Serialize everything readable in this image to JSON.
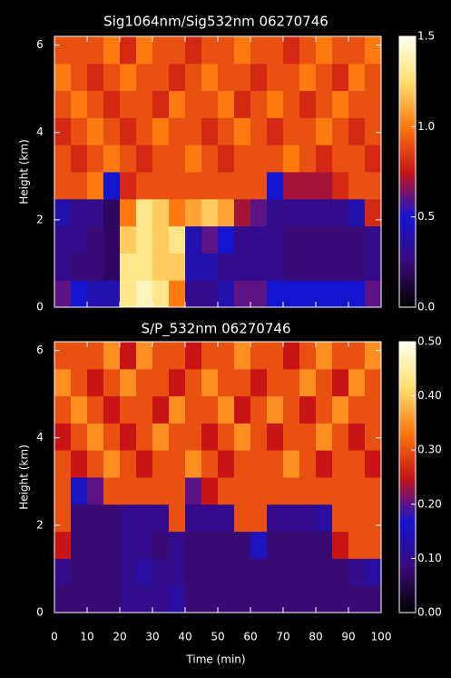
{
  "chart_data": [
    {
      "type": "heatmap",
      "title": "Sig1064nm/Sig532nm 06270746",
      "ylabel": "Height (km)",
      "xlim": [
        0,
        100
      ],
      "ylim": [
        0,
        6.2
      ],
      "yticks": [
        0,
        2,
        4,
        6
      ],
      "xbins": [
        0,
        5,
        10,
        15,
        20,
        25,
        30,
        35,
        40,
        45,
        50,
        55,
        60,
        65,
        70,
        75,
        80,
        85,
        90,
        95,
        100
      ],
      "ybins": [
        0,
        0.62,
        1.24,
        1.86,
        2.48,
        3.1,
        3.72,
        4.34,
        4.96,
        5.58,
        6.2
      ],
      "zlim": [
        0,
        1.5
      ],
      "zticks": [
        {
          "value": 0,
          "label": "0.0"
        },
        {
          "value": 0.5,
          "label": "0.5"
        },
        {
          "value": 1,
          "label": "1.0"
        },
        {
          "value": 1.5,
          "label": "1.5"
        }
      ],
      "colorscale": [
        "#000000",
        "#3a0a78",
        "#1414d0",
        "#c81414",
        "#ff7a10",
        "#ffe070",
        "#fffff0"
      ],
      "z": [
        [
          0.6,
          0.5,
          0.4,
          0.4,
          1.3,
          1.4,
          1.3,
          1.0,
          0.3,
          0.3,
          0.4,
          0.6,
          0.6,
          0.5,
          0.5,
          0.5,
          0.5,
          0.5,
          0.5,
          0.6
        ],
        [
          0.3,
          0.25,
          0.25,
          0.2,
          1.3,
          1.3,
          1.2,
          1.2,
          0.4,
          0.4,
          0.3,
          0.3,
          0.3,
          0.3,
          0.25,
          0.25,
          0.25,
          0.25,
          0.25,
          0.3
        ],
        [
          0.3,
          0.3,
          0.25,
          0.2,
          1.2,
          1.3,
          1.2,
          1.3,
          0.4,
          0.6,
          0.5,
          0.3,
          0.3,
          0.3,
          0.25,
          0.25,
          0.25,
          0.25,
          0.25,
          0.3
        ],
        [
          0.4,
          0.3,
          0.3,
          0.2,
          1.0,
          1.3,
          1.2,
          1.0,
          1.1,
          1.2,
          1.1,
          0.7,
          0.6,
          0.3,
          0.3,
          0.3,
          0.3,
          0.3,
          0.4,
          0.8
        ],
        [
          0.9,
          0.9,
          1.0,
          0.5,
          0.8,
          0.9,
          0.9,
          0.9,
          0.9,
          0.9,
          0.9,
          0.9,
          0.9,
          0.5,
          0.7,
          0.7,
          0.7,
          0.8,
          0.9,
          0.9
        ],
        [
          0.9,
          0.8,
          0.9,
          1.0,
          0.9,
          0.8,
          0.9,
          0.9,
          1.0,
          0.9,
          0.8,
          0.9,
          0.9,
          0.9,
          1.0,
          0.9,
          0.8,
          0.9,
          0.9,
          0.8
        ],
        [
          0.8,
          0.9,
          1.0,
          0.9,
          0.8,
          0.9,
          1.0,
          0.9,
          0.9,
          0.8,
          0.9,
          1.0,
          0.9,
          0.8,
          0.9,
          0.9,
          1.0,
          0.9,
          0.8,
          0.9
        ],
        [
          0.9,
          1.0,
          0.9,
          0.8,
          0.9,
          0.9,
          0.8,
          1.0,
          0.9,
          0.9,
          1.0,
          0.8,
          0.9,
          1.0,
          0.9,
          0.8,
          0.9,
          1.0,
          0.9,
          0.9
        ],
        [
          1.0,
          0.9,
          0.8,
          0.9,
          1.0,
          0.9,
          0.9,
          0.8,
          0.9,
          1.0,
          0.9,
          0.9,
          0.8,
          0.9,
          0.9,
          1.0,
          0.9,
          0.8,
          1.0,
          0.9
        ],
        [
          0.9,
          0.9,
          0.9,
          1.0,
          0.8,
          1.0,
          0.9,
          0.9,
          0.8,
          0.9,
          0.9,
          1.0,
          0.9,
          0.9,
          0.8,
          0.9,
          1.0,
          0.9,
          0.9,
          1.0
        ]
      ]
    },
    {
      "type": "heatmap",
      "title": "S/P_532nm 06270746",
      "ylabel": "Height (km)",
      "xlabel": "Time (min)",
      "xlim": [
        0,
        100
      ],
      "ylim": [
        0,
        6.2
      ],
      "yticks": [
        0,
        2,
        4,
        6
      ],
      "xticks": [
        0,
        10,
        20,
        30,
        40,
        50,
        60,
        70,
        80,
        90,
        100
      ],
      "xbins": [
        0,
        5,
        10,
        15,
        20,
        25,
        30,
        35,
        40,
        45,
        50,
        55,
        60,
        65,
        70,
        75,
        80,
        85,
        90,
        95,
        100
      ],
      "ybins": [
        0,
        0.62,
        1.24,
        1.86,
        2.48,
        3.1,
        3.72,
        4.34,
        4.96,
        5.58,
        6.2
      ],
      "zlim": [
        0,
        0.5
      ],
      "zticks": [
        {
          "value": 0,
          "label": "0.00"
        },
        {
          "value": 0.1,
          "label": "0.10"
        },
        {
          "value": 0.2,
          "label": "0.20"
        },
        {
          "value": 0.3,
          "label": "0.30"
        },
        {
          "value": 0.4,
          "label": "0.40"
        },
        {
          "value": 0.5,
          "label": "0.50"
        }
      ],
      "colorscale": [
        "#000000",
        "#3a0a78",
        "#1414d0",
        "#c81414",
        "#ff7a10",
        "#ffe070",
        "#fffff0"
      ],
      "z": [
        [
          0.08,
          0.08,
          0.08,
          0.08,
          0.1,
          0.1,
          0.1,
          0.12,
          0.08,
          0.08,
          0.08,
          0.08,
          0.08,
          0.08,
          0.08,
          0.08,
          0.08,
          0.08,
          0.08,
          0.08
        ],
        [
          0.1,
          0.08,
          0.08,
          0.08,
          0.1,
          0.12,
          0.1,
          0.1,
          0.08,
          0.08,
          0.08,
          0.08,
          0.08,
          0.08,
          0.08,
          0.08,
          0.08,
          0.08,
          0.1,
          0.12
        ],
        [
          0.25,
          0.08,
          0.08,
          0.08,
          0.1,
          0.1,
          0.08,
          0.1,
          0.08,
          0.08,
          0.08,
          0.08,
          0.15,
          0.08,
          0.08,
          0.08,
          0.08,
          0.25,
          0.3,
          0.3
        ],
        [
          0.3,
          0.08,
          0.08,
          0.08,
          0.1,
          0.1,
          0.1,
          0.3,
          0.1,
          0.1,
          0.1,
          0.3,
          0.3,
          0.1,
          0.1,
          0.1,
          0.12,
          0.3,
          0.3,
          0.3
        ],
        [
          0.3,
          0.15,
          0.2,
          0.3,
          0.3,
          0.3,
          0.3,
          0.3,
          0.2,
          0.25,
          0.3,
          0.3,
          0.3,
          0.3,
          0.3,
          0.3,
          0.3,
          0.3,
          0.3,
          0.3
        ],
        [
          0.3,
          0.25,
          0.3,
          0.35,
          0.3,
          0.25,
          0.3,
          0.3,
          0.35,
          0.3,
          0.25,
          0.3,
          0.3,
          0.3,
          0.35,
          0.3,
          0.25,
          0.3,
          0.3,
          0.25
        ],
        [
          0.25,
          0.3,
          0.35,
          0.3,
          0.25,
          0.3,
          0.35,
          0.3,
          0.3,
          0.25,
          0.3,
          0.35,
          0.3,
          0.25,
          0.3,
          0.3,
          0.35,
          0.3,
          0.25,
          0.3
        ],
        [
          0.3,
          0.35,
          0.3,
          0.25,
          0.3,
          0.3,
          0.25,
          0.35,
          0.3,
          0.3,
          0.35,
          0.25,
          0.3,
          0.35,
          0.3,
          0.25,
          0.3,
          0.35,
          0.3,
          0.3
        ],
        [
          0.35,
          0.3,
          0.25,
          0.3,
          0.35,
          0.3,
          0.3,
          0.25,
          0.3,
          0.35,
          0.3,
          0.3,
          0.25,
          0.3,
          0.3,
          0.35,
          0.3,
          0.25,
          0.35,
          0.3
        ],
        [
          0.3,
          0.3,
          0.3,
          0.35,
          0.25,
          0.35,
          0.3,
          0.3,
          0.25,
          0.3,
          0.3,
          0.35,
          0.3,
          0.3,
          0.25,
          0.3,
          0.35,
          0.3,
          0.3,
          0.35
        ]
      ]
    }
  ]
}
